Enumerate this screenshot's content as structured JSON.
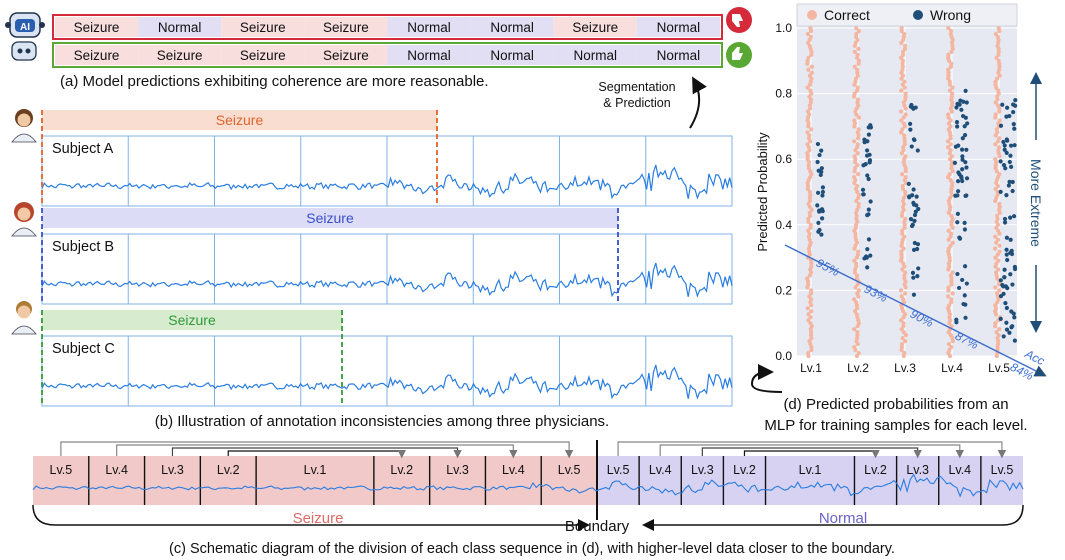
{
  "panel_a": {
    "bad_row": [
      "Seizure",
      "Normal",
      "Seizure",
      "Seizure",
      "Normal",
      "Normal",
      "Seizure",
      "Normal"
    ],
    "good_row": [
      "Seizure",
      "Seizure",
      "Seizure",
      "Seizure",
      "Normal",
      "Normal",
      "Normal",
      "Normal"
    ],
    "bad_row_classes": [
      "seizure",
      "normal",
      "seizure",
      "seizure",
      "normal",
      "normal",
      "seizure",
      "normal"
    ],
    "good_row_classes": [
      "seizure",
      "seizure",
      "seizure",
      "seizure",
      "normal",
      "normal",
      "normal",
      "normal"
    ],
    "ai_badge": "AI",
    "caption": "(a) Model predictions exhibiting coherence are more reasonable.",
    "seg_label_1": "Segmentation",
    "seg_label_2": "& Prediction"
  },
  "panel_b": {
    "subjects": [
      {
        "label": "Subject A",
        "annotation": "Seizure",
        "color": "#e0632a",
        "fill": "#f8ddd0"
      },
      {
        "label": "Subject B",
        "annotation": "Seizure",
        "color": "#3a4fcf",
        "fill": "#dcdcf6"
      },
      {
        "label": "Subject C",
        "annotation": "Seizure",
        "color": "#2f9a36",
        "fill": "#d7ebcf"
      }
    ],
    "caption": "(b) Illustration of annotation inconsistencies among three physicians."
  },
  "panel_c": {
    "seizure_segments": [
      "Lv.5",
      "Lv.4",
      "Lv.3",
      "Lv.2",
      "Lv.1",
      "Lv.2",
      "Lv.3",
      "Lv.4",
      "Lv.5"
    ],
    "normal_segments": [
      "Lv.5",
      "Lv.4",
      "Lv.3",
      "Lv.2",
      "Lv.1",
      "Lv.2",
      "Lv.3",
      "Lv.4",
      "Lv.5"
    ],
    "seizure_label": "Seizure",
    "normal_label": "Normal",
    "boundary_label": "Boundary",
    "caption": "(c) Schematic diagram of the division of each class sequence in (d), with higher-level data closer to the boundary."
  },
  "panel_d": {
    "legend": [
      {
        "label": "Correct",
        "color": "#f4b6a0"
      },
      {
        "label": "Wrong",
        "color": "#1f4e79"
      }
    ],
    "ylabel": "Predicted Probability",
    "right_label": "More Extreme",
    "acc_label": "Acc",
    "acc_values": [
      "95%",
      "93%",
      "90%",
      "87%",
      "84%"
    ],
    "caption_1": "(d) Predicted probabilities from an",
    "caption_2": "MLP for training samples for each level.",
    "colors": {
      "correct": "#f4b6a0",
      "wrong": "#1f4e79",
      "acc": "#3e6fcf",
      "bg": "#e6e9f2"
    }
  },
  "chart_data": {
    "type": "scatter",
    "categories": [
      "Lv.1",
      "Lv.2",
      "Lv.3",
      "Lv.4",
      "Lv.5"
    ],
    "ylabel": "Predicted Probability",
    "ylim": [
      0.0,
      1.0
    ],
    "yticks": [
      "0.0",
      "0.2",
      "0.4",
      "0.6",
      "0.8",
      "1.0"
    ],
    "grid": true,
    "legend_position": "top",
    "series": [
      {
        "name": "Correct",
        "description_range": "dense column spanning 0.0–1.0 at each level"
      },
      {
        "name": "Wrong",
        "ranges": [
          [
            0.37,
            0.66
          ],
          [
            0.27,
            0.72
          ],
          [
            0.16,
            0.77
          ],
          [
            0.09,
            0.84
          ],
          [
            0.04,
            0.78
          ]
        ]
      }
    ],
    "accuracy_line": {
      "label": "Acc",
      "values": [
        "95%",
        "93%",
        "90%",
        "87%",
        "84%"
      ]
    }
  }
}
